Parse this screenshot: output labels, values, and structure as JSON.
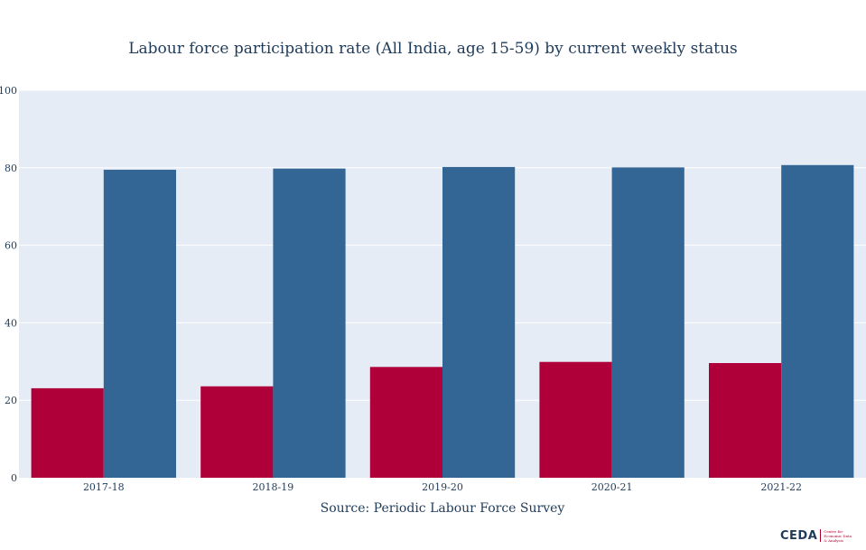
{
  "chart_data": {
    "type": "bar",
    "title": "Labour force participation rate (All India, age 15-59) by current weekly status",
    "source": "Source: Periodic Labour Force Survey",
    "categories": [
      "2017-18",
      "2018-19",
      "2019-20",
      "2020-21",
      "2021-22"
    ],
    "series": [
      {
        "color": "#b0003a",
        "values": [
          23.1,
          23.6,
          28.6,
          29.9,
          29.6
        ]
      },
      {
        "color": "#336694",
        "values": [
          79.5,
          79.8,
          80.2,
          80.1,
          80.7
        ]
      }
    ],
    "ylim": [
      0,
      100
    ],
    "yticks": [
      0,
      20,
      40,
      60,
      80,
      100
    ],
    "grid": true,
    "plot_bg": "#e5ecf6"
  },
  "logo": {
    "word": "CEDA",
    "subtext": "Centre for Economic Data & Analysis"
  }
}
